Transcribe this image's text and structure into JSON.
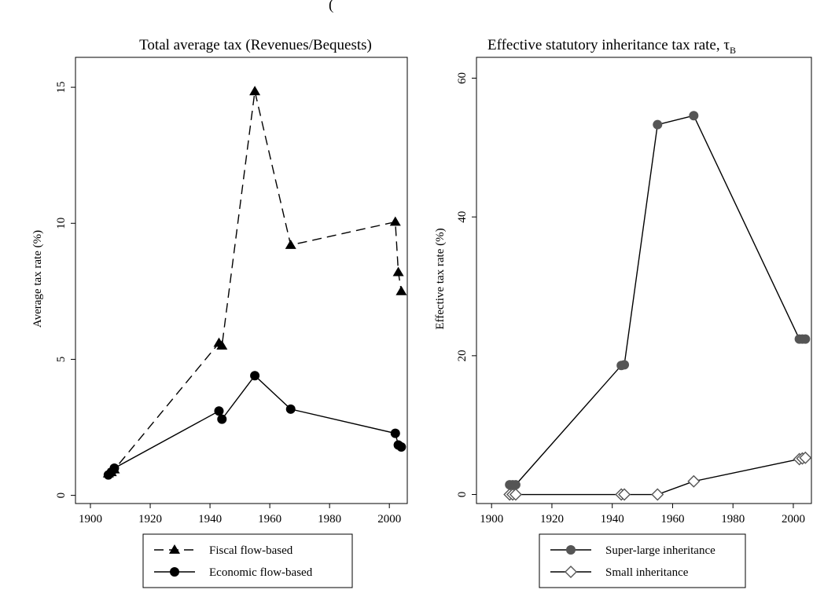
{
  "header_fragment": "(",
  "chart_data": [
    {
      "type": "line",
      "title": "Total average tax (Revenues/Bequests)",
      "xlabel": "",
      "ylabel": "Average tax rate (%)",
      "xlim": [
        1895,
        2006
      ],
      "ylim": [
        -0.3,
        16.1
      ],
      "xticks": [
        1900,
        1920,
        1940,
        1960,
        1980,
        2000
      ],
      "yticks": [
        0,
        5,
        10,
        15
      ],
      "grid": false,
      "legend_position": "bottom",
      "series": [
        {
          "name": "Fiscal flow-based",
          "marker": "triangle",
          "line_style": "dashed",
          "x": [
            1906,
            1907,
            1908,
            1943,
            1944,
            1955,
            1967,
            2002,
            2003,
            2004
          ],
          "y": [
            0.8,
            0.85,
            0.95,
            5.6,
            5.5,
            14.85,
            9.2,
            10.05,
            8.2,
            7.5
          ]
        },
        {
          "name": "Economic flow-based",
          "marker": "circle",
          "line_style": "solid",
          "x": [
            1906,
            1907,
            1908,
            1943,
            1944,
            1955,
            1967,
            2002,
            2003,
            2004
          ],
          "y": [
            0.75,
            0.85,
            1.0,
            3.1,
            2.8,
            4.4,
            3.17,
            2.28,
            1.85,
            1.78
          ]
        }
      ]
    },
    {
      "type": "line",
      "title": "Effective statutory inheritance tax rate, τ",
      "title_subscript": "B",
      "xlabel": "",
      "ylabel": "Effective tax rate (%)",
      "xlim": [
        1895,
        2006
      ],
      "ylim": [
        -1.3,
        63
      ],
      "xticks": [
        1900,
        1920,
        1940,
        1960,
        1980,
        2000
      ],
      "yticks": [
        0,
        20,
        40,
        60
      ],
      "grid": false,
      "legend_position": "bottom",
      "series": [
        {
          "name": "Super-large inheritance",
          "marker": "circle",
          "line_style": "solid",
          "color": "#555555",
          "x": [
            1906,
            1907,
            1908,
            1943,
            1944,
            1955,
            1967,
            2002,
            2003,
            2004
          ],
          "y": [
            1.4,
            1.4,
            1.4,
            18.6,
            18.7,
            53.3,
            54.6,
            22.4,
            22.4,
            22.4
          ]
        },
        {
          "name": "Small inheritance",
          "marker": "diamond-open",
          "line_style": "solid",
          "x": [
            1906,
            1907,
            1908,
            1943,
            1944,
            1955,
            1967,
            2002,
            2003,
            2004
          ],
          "y": [
            0.0,
            0.0,
            0.0,
            0.0,
            0.0,
            0.0,
            1.9,
            5.1,
            5.2,
            5.3
          ]
        }
      ]
    }
  ]
}
